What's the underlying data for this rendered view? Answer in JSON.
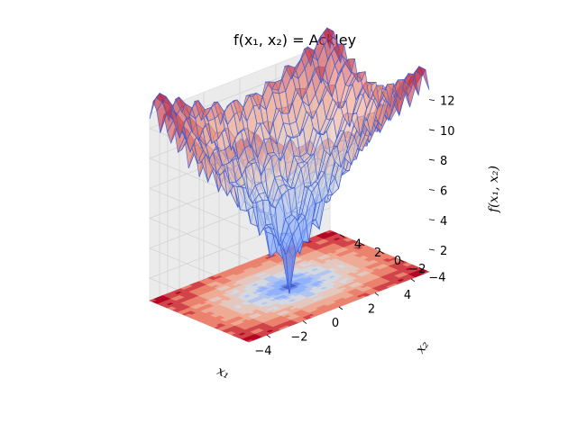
{
  "chart_data": {
    "type": "surface3d",
    "title": "f(x₁, x₂) = Ackley",
    "function": "Ackley",
    "xlabel": "x₁",
    "ylabel": "x₂",
    "zlabel": "f(x₁, x₂)",
    "xlim": [
      -5,
      5
    ],
    "ylim": [
      -5,
      5
    ],
    "zlim": [
      0.5,
      13
    ],
    "x_ticks": [
      -4,
      -2,
      0,
      2,
      4
    ],
    "y_ticks": [
      -4,
      -2,
      0,
      2,
      4
    ],
    "z_ticks": [
      2,
      4,
      6,
      8,
      10,
      12
    ],
    "x_tick_labels": [
      "−4",
      "−2",
      "0",
      "2",
      "4"
    ],
    "y_tick_labels": [
      "−4",
      "−2",
      "0",
      "2",
      "4"
    ],
    "z_tick_labels": [
      "2",
      "4",
      "6",
      "8",
      "10",
      "12"
    ],
    "minimum": {
      "x1": 0,
      "x2": 0,
      "f": 0
    },
    "colormap": "coolwarm",
    "surface_edge_color": "#3a5fd8",
    "grid": true
  }
}
